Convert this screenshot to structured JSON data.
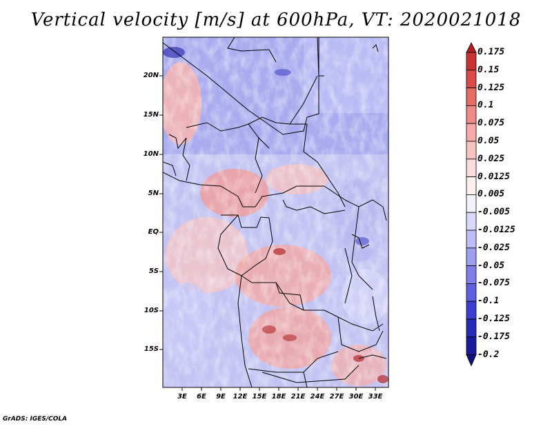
{
  "title": "Vertical velocity [m/s] at 600hPa, VT: 2020021018",
  "footer": "GrADS: IGES/COLA",
  "map": {
    "lat_labels": [
      "20N",
      "15N",
      "10N",
      "5N",
      "EQ",
      "5S",
      "10S",
      "15S"
    ],
    "lon_labels": [
      "3E",
      "6E",
      "9E",
      "12E",
      "15E",
      "18E",
      "21E",
      "24E",
      "27E",
      "30E",
      "33E"
    ],
    "lat_range": [
      -20,
      25
    ],
    "lon_range": [
      0,
      35
    ]
  },
  "colorbar": {
    "labels": [
      "0.175",
      "0.15",
      "0.125",
      "0.1",
      "0.075",
      "0.05",
      "0.025",
      "0.0125",
      "0.005",
      "-0.005",
      "-0.0125",
      "-0.025",
      "-0.05",
      "-0.075",
      "-0.1",
      "-0.125",
      "-0.175",
      "-0.2"
    ],
    "colors": [
      "#b11e23",
      "#c83232",
      "#d94a48",
      "#e86a68",
      "#ef8a88",
      "#f5a9a8",
      "#f8c4c3",
      "#fbdcdb",
      "#fdf0ef",
      "#f2f2fd",
      "#d9d9fb",
      "#bdbdf8",
      "#9f9ff2",
      "#7f7fec",
      "#5f5fe0",
      "#3f3fcf",
      "#2a2ab8",
      "#1a1a9e",
      "#10107e"
    ]
  }
}
